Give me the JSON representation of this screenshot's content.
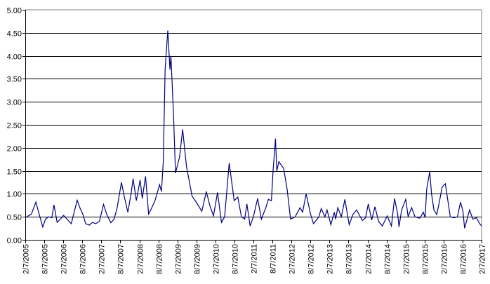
{
  "chart_data": {
    "type": "line",
    "title": "",
    "xlabel": "",
    "ylabel": "",
    "ylim": [
      0,
      5
    ],
    "xlim": [
      "2005-02-07",
      "2017-02-07"
    ],
    "grid": "horizontal",
    "legend": "none",
    "line_color": "#000080",
    "y_ticks": [
      "0.00",
      "0.50",
      "1.00",
      "1.50",
      "2.00",
      "2.50",
      "3.00",
      "3.50",
      "4.00",
      "4.50",
      "5.00"
    ],
    "x_ticks": [
      "2/7/2005",
      "8/7/2005",
      "2/7/2006",
      "8/7/2006",
      "2/7/2007",
      "8/7/2007",
      "2/7/2008",
      "8/7/2008",
      "2/7/2009",
      "8/7/2009",
      "2/7/2010",
      "8/7/2010",
      "2/7/2011",
      "8/7/2011",
      "2/7/2012",
      "8/7/2012",
      "2/7/2013",
      "8/7/2013",
      "2/7/2014",
      "8/7/2014",
      "2/7/2015",
      "8/7/2015",
      "2/7/2016",
      "8/7/2016",
      "2/7/2017"
    ],
    "series": [
      {
        "points": [
          [
            "2005-02-07",
            0.48
          ],
          [
            "2005-03-07",
            0.52
          ],
          [
            "2005-04-07",
            0.56
          ],
          [
            "2005-05-20",
            0.82
          ],
          [
            "2005-06-15",
            0.6
          ],
          [
            "2005-07-25",
            0.28
          ],
          [
            "2005-08-20",
            0.45
          ],
          [
            "2005-09-20",
            0.5
          ],
          [
            "2005-10-20",
            0.48
          ],
          [
            "2005-11-10",
            0.76
          ],
          [
            "2005-12-10",
            0.38
          ],
          [
            "2006-01-10",
            0.45
          ],
          [
            "2006-02-10",
            0.53
          ],
          [
            "2006-03-15",
            0.45
          ],
          [
            "2006-04-25",
            0.35
          ],
          [
            "2006-06-20",
            0.86
          ],
          [
            "2006-07-20",
            0.68
          ],
          [
            "2006-08-15",
            0.55
          ],
          [
            "2006-09-10",
            0.35
          ],
          [
            "2006-10-15",
            0.32
          ],
          [
            "2006-11-15",
            0.38
          ],
          [
            "2006-12-15",
            0.35
          ],
          [
            "2007-01-20",
            0.4
          ],
          [
            "2007-03-01",
            0.77
          ],
          [
            "2007-04-01",
            0.55
          ],
          [
            "2007-05-10",
            0.37
          ],
          [
            "2007-06-10",
            0.45
          ],
          [
            "2007-07-10",
            0.7
          ],
          [
            "2007-08-20",
            1.25
          ],
          [
            "2007-09-15",
            0.95
          ],
          [
            "2007-10-20",
            0.6
          ],
          [
            "2007-11-20",
            1.0
          ],
          [
            "2007-12-10",
            1.33
          ],
          [
            "2008-01-10",
            0.85
          ],
          [
            "2008-02-15",
            1.3
          ],
          [
            "2008-03-07",
            0.9
          ],
          [
            "2008-04-07",
            1.38
          ],
          [
            "2008-05-07",
            0.56
          ],
          [
            "2008-06-07",
            0.7
          ],
          [
            "2008-07-07",
            0.85
          ],
          [
            "2008-08-20",
            1.2
          ],
          [
            "2008-09-07",
            1.05
          ],
          [
            "2008-09-25",
            1.7
          ],
          [
            "2008-10-12",
            3.7
          ],
          [
            "2008-11-07",
            4.55
          ],
          [
            "2008-11-28",
            3.7
          ],
          [
            "2008-12-07",
            4.0
          ],
          [
            "2009-01-01",
            2.7
          ],
          [
            "2009-01-20",
            1.45
          ],
          [
            "2009-02-28",
            1.8
          ],
          [
            "2009-03-30",
            2.4
          ],
          [
            "2009-05-05",
            1.6
          ],
          [
            "2009-06-28",
            0.95
          ],
          [
            "2009-08-12",
            0.8
          ],
          [
            "2009-09-30",
            0.62
          ],
          [
            "2009-11-12",
            1.05
          ],
          [
            "2009-12-15",
            0.75
          ],
          [
            "2010-01-20",
            0.52
          ],
          [
            "2010-02-28",
            1.03
          ],
          [
            "2010-04-07",
            0.38
          ],
          [
            "2010-05-07",
            0.5
          ],
          [
            "2010-06-20",
            1.67
          ],
          [
            "2010-07-20",
            1.15
          ],
          [
            "2010-08-07",
            0.85
          ],
          [
            "2010-09-10",
            0.93
          ],
          [
            "2010-10-15",
            0.5
          ],
          [
            "2010-11-15",
            0.45
          ],
          [
            "2010-12-07",
            0.78
          ],
          [
            "2011-01-07",
            0.3
          ],
          [
            "2011-02-07",
            0.5
          ],
          [
            "2011-03-20",
            0.9
          ],
          [
            "2011-04-25",
            0.45
          ],
          [
            "2011-06-07",
            0.7
          ],
          [
            "2011-07-01",
            0.88
          ],
          [
            "2011-07-30",
            0.85
          ],
          [
            "2011-08-15",
            1.5
          ],
          [
            "2011-09-07",
            2.2
          ],
          [
            "2011-09-20",
            1.5
          ],
          [
            "2011-10-10",
            1.7
          ],
          [
            "2011-11-25",
            1.55
          ],
          [
            "2011-12-28",
            1.1
          ],
          [
            "2012-01-30",
            0.45
          ],
          [
            "2012-03-15",
            0.5
          ],
          [
            "2012-04-30",
            0.7
          ],
          [
            "2012-05-25",
            0.6
          ],
          [
            "2012-06-28",
            1.0
          ],
          [
            "2012-08-10",
            0.55
          ],
          [
            "2012-09-07",
            0.35
          ],
          [
            "2012-10-28",
            0.5
          ],
          [
            "2012-11-20",
            0.68
          ],
          [
            "2012-12-25",
            0.5
          ],
          [
            "2013-01-15",
            0.65
          ],
          [
            "2013-02-20",
            0.33
          ],
          [
            "2013-03-25",
            0.6
          ],
          [
            "2013-04-07",
            0.45
          ],
          [
            "2013-04-28",
            0.7
          ],
          [
            "2013-06-01",
            0.5
          ],
          [
            "2013-07-05",
            0.88
          ],
          [
            "2013-08-15",
            0.33
          ],
          [
            "2013-09-20",
            0.55
          ],
          [
            "2013-10-25",
            0.65
          ],
          [
            "2013-12-20",
            0.42
          ],
          [
            "2014-01-20",
            0.48
          ],
          [
            "2014-02-15",
            0.78
          ],
          [
            "2014-03-20",
            0.43
          ],
          [
            "2014-04-20",
            0.72
          ],
          [
            "2014-05-25",
            0.4
          ],
          [
            "2014-06-30",
            0.3
          ],
          [
            "2014-08-15",
            0.52
          ],
          [
            "2014-09-25",
            0.3
          ],
          [
            "2014-10-25",
            0.9
          ],
          [
            "2014-11-25",
            0.55
          ],
          [
            "2014-12-07",
            0.28
          ],
          [
            "2015-01-01",
            0.65
          ],
          [
            "2015-02-10",
            0.88
          ],
          [
            "2015-03-05",
            0.5
          ],
          [
            "2015-04-07",
            0.7
          ],
          [
            "2015-05-10",
            0.5
          ],
          [
            "2015-06-25",
            0.47
          ],
          [
            "2015-07-28",
            0.6
          ],
          [
            "2015-08-15",
            0.48
          ],
          [
            "2015-08-30",
            1.1
          ],
          [
            "2015-09-28",
            1.48
          ],
          [
            "2015-10-15",
            1.0
          ],
          [
            "2015-11-07",
            0.65
          ],
          [
            "2015-12-05",
            0.55
          ],
          [
            "2016-01-05",
            0.9
          ],
          [
            "2016-01-25",
            1.15
          ],
          [
            "2016-02-25",
            1.22
          ],
          [
            "2016-03-20",
            0.85
          ],
          [
            "2016-04-12",
            0.5
          ],
          [
            "2016-05-15",
            0.48
          ],
          [
            "2016-06-20",
            0.5
          ],
          [
            "2016-07-20",
            0.82
          ],
          [
            "2016-08-12",
            0.62
          ],
          [
            "2016-08-28",
            0.25
          ],
          [
            "2016-10-15",
            0.65
          ],
          [
            "2016-11-15",
            0.45
          ],
          [
            "2016-12-20",
            0.48
          ],
          [
            "2017-01-20",
            0.35
          ],
          [
            "2017-02-07",
            0.3
          ]
        ]
      }
    ]
  }
}
